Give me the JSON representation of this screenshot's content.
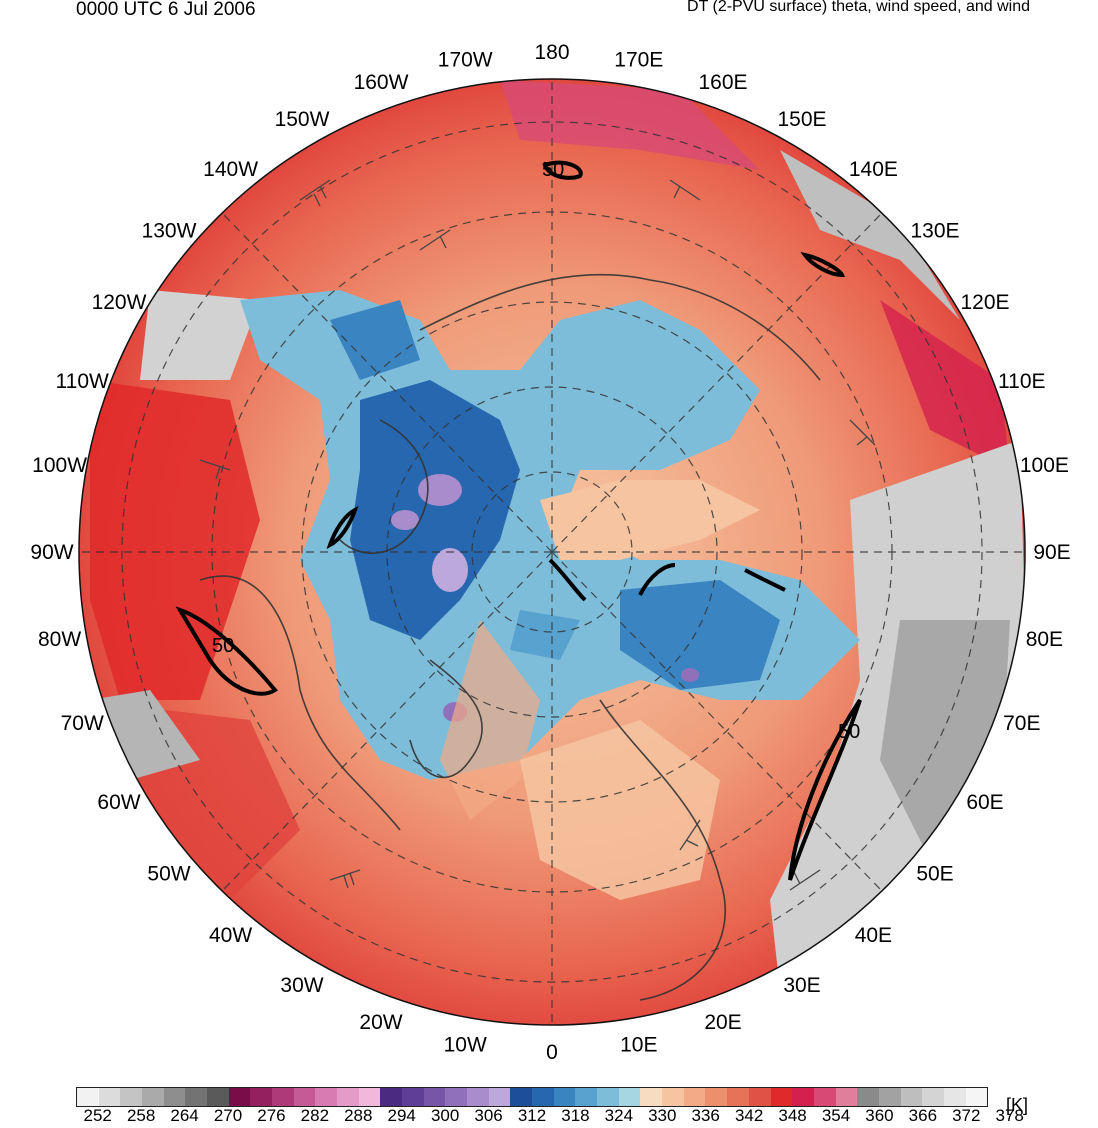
{
  "header": {
    "time_label": "0000 UTC 6 Jul 2006",
    "product_label": "DT (2-PVU surface) theta, wind speed, and wind"
  },
  "map": {
    "projection": "north-polar-stereographic",
    "center_label": "North Pole",
    "longitude_labels": [
      "180",
      "170E",
      "160E",
      "150E",
      "140E",
      "130E",
      "120E",
      "110E",
      "100E",
      "90E",
      "80E",
      "70E",
      "60E",
      "50E",
      "40E",
      "30E",
      "20E",
      "10E",
      "0",
      "10W",
      "20W",
      "30W",
      "40W",
      "50W",
      "60W",
      "70W",
      "80W",
      "90W",
      "100W",
      "110W",
      "120W",
      "130W",
      "140W",
      "150W",
      "160W",
      "170W"
    ],
    "contour_labels": [
      "50",
      "50",
      "50"
    ]
  },
  "colorbar": {
    "units": "[K]",
    "tick_labels": [
      "252",
      "258",
      "264",
      "270",
      "276",
      "282",
      "288",
      "294",
      "300",
      "306",
      "312",
      "318",
      "324",
      "330",
      "336",
      "342",
      "348",
      "354",
      "360",
      "366",
      "372",
      "378"
    ],
    "colors": [
      "#f2f2f2",
      "#dcdcdc",
      "#c4c4c4",
      "#aaaaaa",
      "#8e8e8e",
      "#737373",
      "#5a5a5a",
      "#7a0c4a",
      "#95205f",
      "#ae3a7a",
      "#c45a96",
      "#d87bb2",
      "#e59bc8",
      "#f1b8dc",
      "#4b2a82",
      "#5e3e96",
      "#7756a8",
      "#9070bb",
      "#a88ccc",
      "#bda8dc",
      "#1d4e9a",
      "#2667b0",
      "#3a84c2",
      "#57a2cf",
      "#7dbdd9",
      "#a7d6e3",
      "#f7dcc2",
      "#f6c4a1",
      "#f2ab86",
      "#ec8f6c",
      "#e67257",
      "#e05246",
      "#e0292a",
      "#d4204e",
      "#d84a75",
      "#e07e9b",
      "#8a8a8a",
      "#a2a2a2",
      "#bebebe",
      "#d4d4d4",
      "#e6e6e6",
      "#f5f5f5"
    ]
  }
}
